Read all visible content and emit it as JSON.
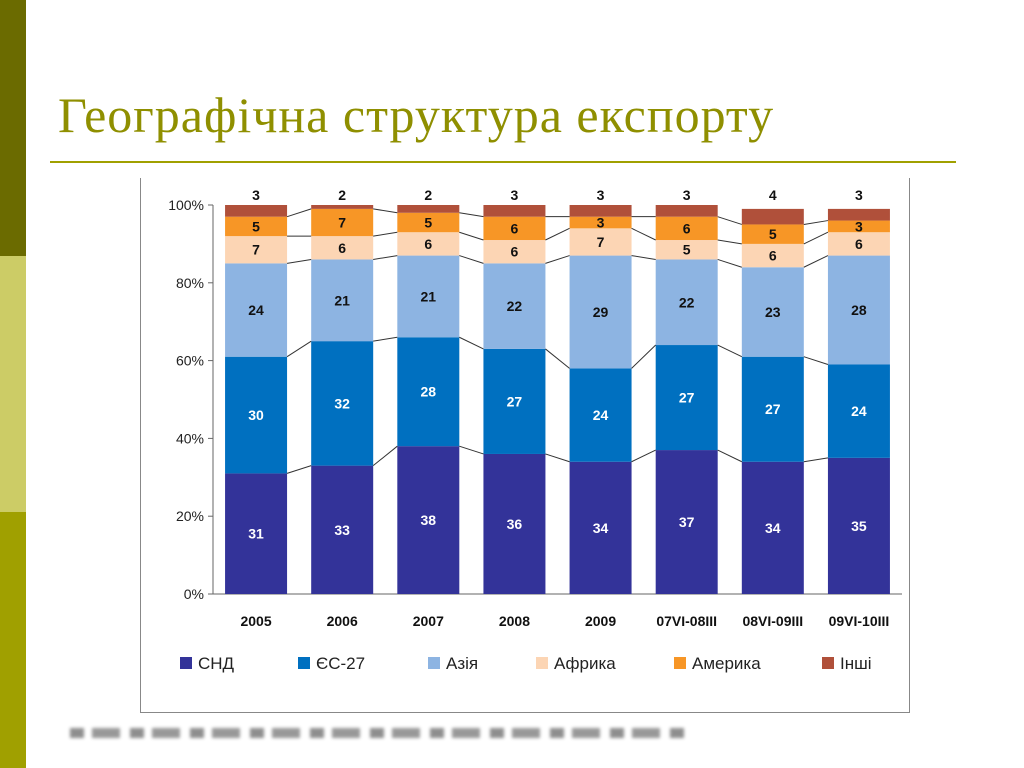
{
  "slide": {
    "title": "Географічна структура експорту"
  },
  "chart_data": {
    "type": "bar",
    "stacked": true,
    "categories": [
      "2005",
      "2006",
      "2007",
      "2008",
      "2009",
      "07VI-08III",
      "08VI-09III",
      "09VI-10III"
    ],
    "series": [
      {
        "name": "СНД",
        "values": [
          31,
          33,
          38,
          36,
          34,
          37,
          34,
          35
        ],
        "color": "#333399",
        "label_color": "#ffffff"
      },
      {
        "name": "ЄС-27",
        "values": [
          30,
          32,
          28,
          27,
          24,
          27,
          27,
          24
        ],
        "color": "#0070c0",
        "label_color": "#ffffff"
      },
      {
        "name": "Азія",
        "values": [
          24,
          21,
          21,
          22,
          29,
          22,
          23,
          28
        ],
        "color": "#8db4e2",
        "label_color": "#111111"
      },
      {
        "name": "Африка",
        "values": [
          7,
          6,
          6,
          6,
          7,
          5,
          6,
          6
        ],
        "color": "#fcd5b4",
        "label_color": "#111111"
      },
      {
        "name": "Америка",
        "values": [
          5,
          7,
          5,
          6,
          3,
          6,
          5,
          3
        ],
        "color": "#f79626",
        "label_color": "#111111"
      },
      {
        "name": "Інші",
        "values": [
          3,
          2,
          2,
          3,
          3,
          3,
          4,
          3
        ],
        "color": "#b0503a",
        "label_color": "#111111"
      }
    ],
    "y_ticks": [
      "0%",
      "20%",
      "40%",
      "60%",
      "80%",
      "100%"
    ],
    "ylim": [
      0,
      100
    ],
    "legend_position": "bottom",
    "title": "",
    "xlabel": "",
    "ylabel": ""
  }
}
